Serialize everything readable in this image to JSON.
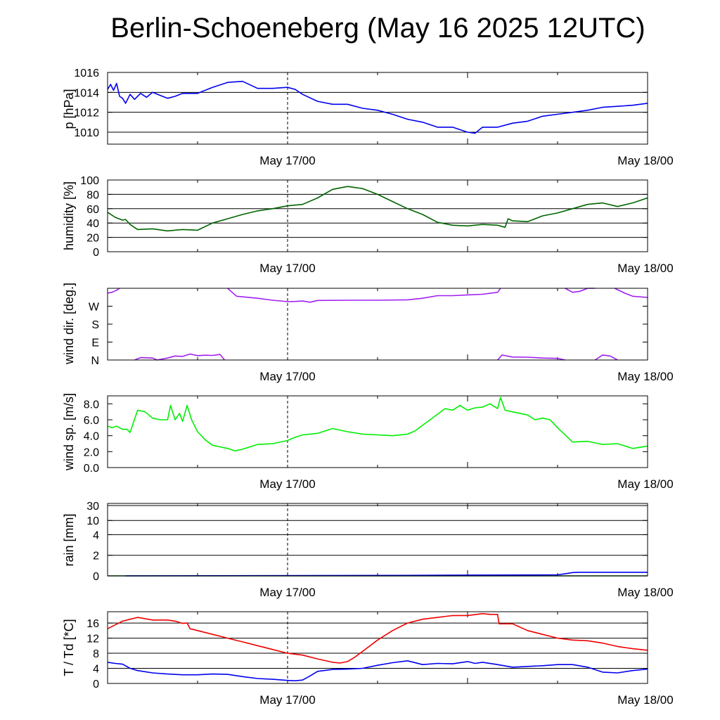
{
  "title": "Berlin-Schoeneberg (May 16 2025 12UTC)",
  "x_axis": {
    "tick_labels": [
      "May 17/00",
      "May 18/00"
    ],
    "range_hours": [
      0,
      36
    ],
    "marker_hour": 12
  },
  "chart_data": [
    {
      "type": "line",
      "ylabel": "p [hPa]",
      "ylim": [
        1008.8,
        1016
      ],
      "yticks": [
        1010,
        1012,
        1014,
        1016
      ],
      "ytick_labels": [
        "1010",
        "1012",
        "1014",
        "1016"
      ],
      "grid": [
        1010,
        1012,
        1014,
        1016
      ],
      "series": [
        {
          "color": "#0000ee",
          "x": [
            0,
            0.2,
            0.4,
            0.6,
            0.8,
            1.0,
            1.2,
            1.5,
            1.8,
            2.2,
            2.6,
            3.0,
            3.5,
            4.0,
            4.5,
            5.0,
            6.0,
            7.0,
            8.0,
            9.0,
            10.0,
            11.0,
            12.0,
            12.5,
            13.0,
            14.0,
            15.0,
            16.0,
            17.0,
            18.0,
            19.0,
            20.0,
            21.0,
            22.0,
            22.5,
            23.0,
            24.0,
            24.5,
            25.0,
            26.0,
            27.0,
            28.0,
            29.0,
            30.0,
            31.0,
            32.0,
            33.0,
            34.0,
            35.0,
            36.0
          ],
          "y": [
            1014.3,
            1014.8,
            1014.2,
            1014.9,
            1013.6,
            1013.4,
            1012.9,
            1013.8,
            1013.3,
            1013.9,
            1013.5,
            1014.0,
            1013.7,
            1013.4,
            1013.6,
            1013.9,
            1013.9,
            1014.5,
            1015.0,
            1015.1,
            1014.4,
            1014.4,
            1014.5,
            1014.3,
            1013.8,
            1013.1,
            1012.8,
            1012.8,
            1012.4,
            1012.2,
            1011.8,
            1011.3,
            1011.0,
            1010.5,
            1010.5,
            1010.5,
            1010.0,
            1009.9,
            1010.5,
            1010.5,
            1010.9,
            1011.1,
            1011.6,
            1011.8,
            1012.0,
            1012.2,
            1012.5,
            1012.6,
            1012.7,
            1012.9
          ]
        }
      ]
    },
    {
      "type": "line",
      "ylabel": "humidity [%]",
      "ylim": [
        0,
        100
      ],
      "yticks": [
        0,
        20,
        40,
        60,
        80,
        100
      ],
      "ytick_labels": [
        "0",
        "20",
        "40",
        "60",
        "80",
        "100"
      ],
      "grid": [
        20,
        40,
        60,
        80,
        100
      ],
      "series": [
        {
          "color": "#006400",
          "x": [
            0,
            0.5,
            1.0,
            1.2,
            1.5,
            2.0,
            3.0,
            4.0,
            5.0,
            6.0,
            7.0,
            8.0,
            9.0,
            10.0,
            11.0,
            12.0,
            13.0,
            14.0,
            15.0,
            16.0,
            17.0,
            18.0,
            19.0,
            20.0,
            21.0,
            22.0,
            23.0,
            24.0,
            25.0,
            26.0,
            26.5,
            26.7,
            27.0,
            28.0,
            29.0,
            30.0,
            31.0,
            32.0,
            33.0,
            34.0,
            35.0,
            36.0
          ],
          "y": [
            55,
            48,
            44,
            45,
            38,
            31,
            32,
            29,
            31,
            30,
            40,
            46,
            52,
            57,
            60,
            64,
            66,
            75,
            87,
            91,
            88,
            80,
            70,
            60,
            52,
            41,
            37,
            36,
            38,
            37,
            34,
            46,
            43,
            42,
            50,
            54,
            60,
            66,
            68,
            63,
            68,
            75
          ]
        }
      ]
    },
    {
      "type": "line",
      "ylabel": "wind dir. [deg.]",
      "ylim": [
        0,
        360
      ],
      "yticks": [
        0,
        90,
        180,
        270
      ],
      "ytick_labels": [
        "N",
        "E",
        "S",
        "W"
      ],
      "grid": [],
      "series": [
        {
          "color": "#a020f0",
          "x": [
            0,
            0.3,
            0.6,
            0.8
          ],
          "y": [
            336,
            340,
            350,
            360
          ]
        },
        {
          "color": "#a020f0",
          "x": [
            1.8,
            2.2,
            3.0,
            3.3,
            4.0,
            4.5,
            5.0,
            5.5,
            6.0,
            6.5,
            7.0,
            7.5,
            7.8
          ],
          "y": [
            0,
            12,
            10,
            0,
            10,
            20,
            18,
            30,
            22,
            24,
            23,
            28,
            0
          ]
        },
        {
          "color": "#a020f0",
          "x": [
            8.0,
            8.3,
            8.6,
            10.0,
            11.0,
            12.0,
            12.5,
            13.0,
            13.5,
            14.0,
            16.0,
            18.0,
            20.0,
            21.0,
            22.0,
            23.0,
            24.0,
            25.0,
            26.0,
            26.2
          ],
          "y": [
            360,
            340,
            320,
            310,
            300,
            293,
            294,
            296,
            290,
            299,
            300,
            300,
            302,
            310,
            323,
            323,
            327,
            330,
            340,
            360
          ]
        },
        {
          "color": "#a020f0",
          "x": [
            26.0,
            26.3,
            27.0,
            28.0,
            29.0,
            30.0,
            30.5
          ],
          "y": [
            0,
            25,
            15,
            14,
            10,
            8,
            0
          ]
        },
        {
          "color": "#a020f0",
          "x": [
            30.5,
            31.0,
            31.5,
            32.0,
            32.5
          ],
          "y": [
            360,
            340,
            345,
            360,
            360
          ]
        },
        {
          "color": "#a020f0",
          "x": [
            32.5,
            33.0,
            33.5,
            34.0
          ],
          "y": [
            0,
            25,
            20,
            0
          ]
        },
        {
          "color": "#a020f0",
          "x": [
            33.8,
            34.5,
            35.0,
            36.0
          ],
          "y": [
            360,
            335,
            320,
            314
          ]
        }
      ]
    },
    {
      "type": "line",
      "ylabel": "wind sp. [m/s]",
      "ylim": [
        0,
        9
      ],
      "yticks": [
        0,
        2,
        4,
        6,
        8
      ],
      "ytick_labels": [
        "0.0",
        "2.0",
        "4.0",
        "6.0",
        "8.0"
      ],
      "grid": [],
      "series": [
        {
          "color": "#00ee00",
          "x": [
            0,
            0.3,
            0.6,
            1.0,
            1.3,
            1.5,
            2.0,
            2.5,
            3.0,
            3.5,
            4.0,
            4.2,
            4.5,
            4.8,
            5.0,
            5.3,
            5.6,
            6.0,
            6.5,
            7.0,
            8.0,
            8.5,
            9.0,
            10.0,
            11.0,
            12.0,
            12.5,
            13.0,
            14.0,
            15.0,
            16.0,
            17.0,
            18.0,
            19.0,
            20.0,
            20.5,
            21.0,
            21.5,
            22.0,
            22.5,
            23.0,
            23.5,
            24.0,
            24.5,
            25.0,
            25.5,
            26.0,
            26.2,
            26.5,
            27.0,
            28.0,
            28.5,
            29.0,
            29.5,
            30.0,
            31.0,
            32.0,
            33.0,
            34.0,
            35.0,
            36.0
          ],
          "y": [
            5.2,
            5.0,
            5.2,
            4.8,
            4.8,
            4.4,
            7.2,
            7.0,
            6.2,
            6.0,
            6.0,
            7.8,
            6.0,
            6.8,
            5.8,
            7.8,
            6.0,
            4.5,
            3.5,
            2.8,
            2.4,
            2.1,
            2.3,
            2.9,
            3.0,
            3.4,
            3.8,
            4.1,
            4.3,
            4.9,
            4.5,
            4.2,
            4.1,
            4.0,
            4.2,
            4.6,
            5.3,
            6.0,
            6.7,
            7.4,
            7.2,
            7.8,
            7.2,
            7.5,
            7.6,
            8.0,
            7.4,
            8.8,
            7.2,
            7.0,
            6.6,
            6.0,
            6.2,
            6.0,
            5.0,
            3.2,
            3.3,
            2.9,
            3.0,
            2.4,
            2.7
          ]
        }
      ]
    },
    {
      "type": "area",
      "ylabel": "rain [mm]",
      "ylim": [
        0,
        30
      ],
      "yticks": [
        0,
        2,
        4,
        10,
        30
      ],
      "ytick_labels": [
        "0",
        "2",
        "4",
        "10",
        "30"
      ],
      "grid": [
        2,
        4,
        10,
        30
      ],
      "series": [
        {
          "color": "#006400",
          "x": [
            0,
            36
          ],
          "y": [
            0,
            0
          ]
        },
        {
          "color": "#0000ee",
          "x": [
            1.2,
            10.0,
            20.0,
            30.0,
            30.5,
            31.0,
            31.5,
            36.0
          ],
          "y": [
            0,
            0.02,
            0.05,
            0.1,
            0.2,
            0.32,
            0.35,
            0.35
          ]
        }
      ]
    },
    {
      "type": "line",
      "ylabel": "T / Td [*C]",
      "ylim": [
        0,
        19
      ],
      "yticks": [
        0,
        4,
        8,
        12,
        16
      ],
      "ytick_labels": [
        "0",
        "4",
        "8",
        "12",
        "16"
      ],
      "grid": [
        4,
        8,
        12,
        16
      ],
      "series": [
        {
          "name": "T",
          "color": "#ee0000",
          "x": [
            0,
            0.5,
            1.0,
            1.5,
            2.0,
            3.0,
            4.0,
            4.5,
            5.0,
            5.3,
            5.5,
            6.0,
            7.0,
            8.0,
            9.0,
            10.0,
            11.0,
            12.0,
            13.0,
            14.0,
            15.0,
            15.5,
            16.0,
            16.5,
            17.0,
            18.0,
            19.0,
            20.0,
            21.0,
            22.0,
            23.0,
            24.0,
            25.0,
            25.5,
            26.0,
            26.1,
            27.0,
            28.0,
            29.0,
            30.0,
            31.0,
            32.0,
            33.0,
            34.0,
            35.0,
            36.0
          ],
          "y": [
            14.5,
            15.5,
            16.5,
            17.0,
            17.5,
            16.8,
            16.8,
            16.5,
            15.9,
            16.0,
            14.5,
            14.0,
            13.0,
            12.0,
            11.0,
            10.0,
            9.0,
            8.0,
            7.5,
            6.5,
            5.6,
            5.4,
            5.8,
            7.0,
            8.5,
            11.5,
            14.0,
            16.0,
            17.0,
            17.5,
            18.0,
            18.0,
            18.5,
            18.3,
            18.3,
            15.8,
            15.8,
            14.0,
            13.0,
            12.0,
            11.5,
            11.3,
            10.7,
            9.8,
            9.2,
            8.8
          ]
        },
        {
          "name": "Td",
          "color": "#0000ee",
          "x": [
            0,
            0.5,
            1.0,
            1.5,
            2.0,
            3.0,
            4.0,
            5.0,
            6.0,
            7.0,
            8.0,
            9.0,
            10.0,
            11.0,
            12.0,
            12.5,
            13.0,
            13.5,
            14.0,
            15.0,
            16.0,
            17.0,
            18.0,
            19.0,
            20.0,
            21.0,
            22.0,
            23.0,
            24.0,
            24.5,
            25.0,
            26.0,
            27.0,
            28.0,
            29.0,
            30.0,
            31.0,
            32.0,
            33.0,
            34.0,
            35.0,
            36.0
          ],
          "y": [
            5.6,
            5.3,
            5.1,
            4.0,
            3.4,
            2.8,
            2.5,
            2.3,
            2.3,
            2.5,
            2.4,
            1.8,
            1.3,
            1.1,
            0.8,
            0.7,
            0.9,
            2.0,
            3.2,
            3.7,
            3.8,
            4.0,
            4.8,
            5.5,
            6.0,
            5.0,
            5.3,
            5.2,
            5.8,
            5.3,
            5.6,
            5.0,
            4.3,
            4.5,
            4.7,
            5.0,
            5.0,
            4.3,
            3.0,
            2.8,
            3.4,
            3.8
          ]
        }
      ]
    }
  ]
}
